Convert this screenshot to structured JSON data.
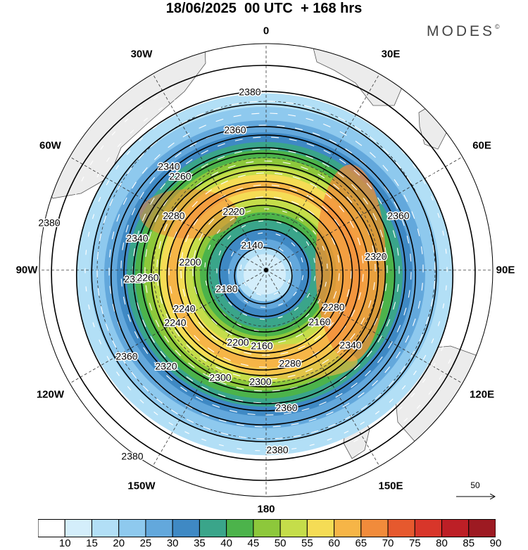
{
  "title": "18/06/2025  00 UTC  + 168 hrs",
  "brand": {
    "name": "MODES",
    "mark": "©"
  },
  "longitude_labels": [
    "0",
    "30E",
    "60E",
    "90E",
    "120E",
    "150E",
    "180",
    "150W",
    "120W",
    "90W",
    "60W",
    "30W"
  ],
  "contours": {
    "labels": [
      "2380",
      "2380",
      "2380",
      "2380",
      "2360",
      "2360",
      "2360",
      "2360",
      "2340",
      "2340",
      "2340",
      "2320",
      "2320",
      "2320",
      "2300",
      "2300",
      "2280",
      "2280",
      "2280",
      "2260",
      "2260",
      "2240",
      "2240",
      "2220",
      "2200",
      "2200",
      "2180",
      "2160",
      "2160",
      "2140"
    ]
  },
  "colorbar": {
    "ticks": [
      "10",
      "15",
      "20",
      "25",
      "30",
      "35",
      "40",
      "45",
      "50",
      "55",
      "60",
      "65",
      "70",
      "75",
      "80",
      "85",
      "90"
    ],
    "colors": [
      "#ffffff",
      "#d4eefb",
      "#b2dff6",
      "#8ec9ee",
      "#63a8dc",
      "#3f89c4",
      "#3aa58a",
      "#4cb34b",
      "#8dc83b",
      "#c5dd4a",
      "#f5dc55",
      "#f6b547",
      "#f18b3b",
      "#e6592e",
      "#d8362a",
      "#bd1f26",
      "#9d1a22"
    ]
  },
  "reference_vector": {
    "value": "50"
  }
}
